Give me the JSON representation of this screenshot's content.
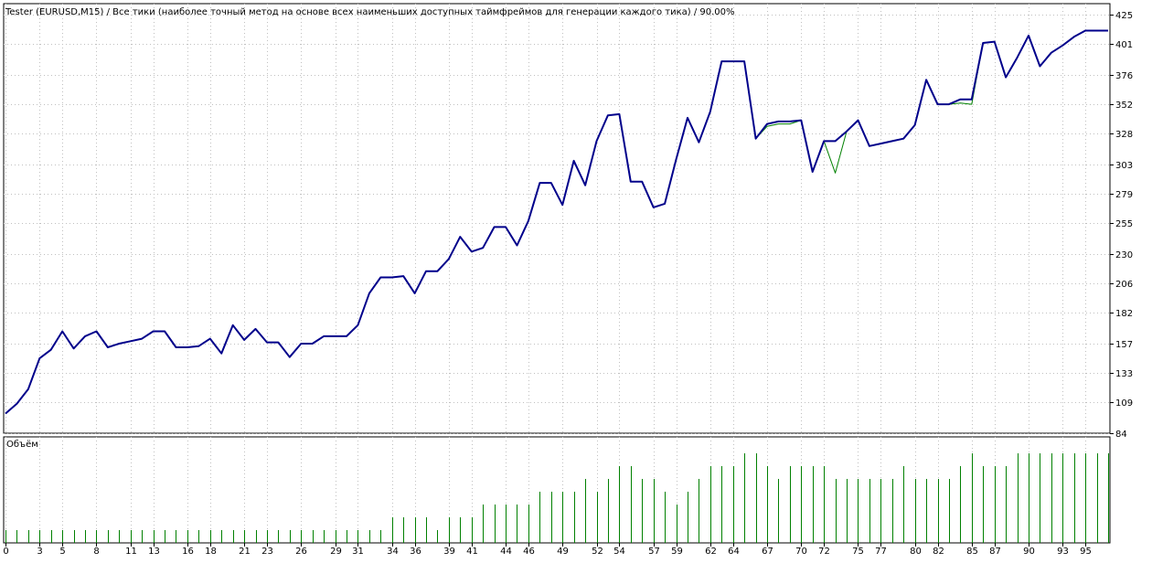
{
  "header": {
    "title": "Tester (EURUSD,M15) / Все тики (наиболее точный метод на основе всех наименьших доступных таймфреймов для генерации каждого тика) / 90.00%"
  },
  "volume_panel": {
    "label": "Объём"
  },
  "colors": {
    "balance": "#00008b",
    "equity": "#008000",
    "volume": "#008000",
    "grid": "#c0c0c0",
    "background": "#ffffff"
  },
  "chart_data": {
    "type": "line",
    "title": "Tester (EURUSD,M15) / Все тики (наиболее точный метод на основе всех наименьших доступных таймфреймов для генерации каждого тика) / 90.00%",
    "ylim": [
      84,
      434
    ],
    "xlim": [
      0,
      97
    ],
    "y_ticks": [
      84,
      109,
      133,
      157,
      182,
      206,
      230,
      255,
      279,
      303,
      328,
      352,
      376,
      401,
      425
    ],
    "x_ticks": [
      0,
      3,
      5,
      8,
      11,
      13,
      16,
      18,
      21,
      23,
      26,
      29,
      31,
      34,
      36,
      39,
      41,
      44,
      46,
      49,
      52,
      54,
      57,
      59,
      62,
      64,
      67,
      70,
      72,
      75,
      77,
      80,
      82,
      85,
      87,
      90,
      93,
      95
    ],
    "grid": true,
    "series": [
      {
        "role": "balance",
        "x": [
          0,
          1,
          2,
          3,
          4,
          5,
          6,
          7,
          8,
          9,
          10,
          11,
          12,
          13,
          14,
          15,
          16,
          17,
          18,
          19,
          20,
          21,
          22,
          23,
          24,
          25,
          26,
          27,
          28,
          29,
          30,
          31,
          32,
          33,
          34,
          35,
          36,
          37,
          38,
          39,
          40,
          41,
          42,
          43,
          44,
          45,
          46,
          47,
          48,
          49,
          50,
          51,
          52,
          53,
          54,
          55,
          56,
          57,
          58,
          59,
          60,
          61,
          62,
          63,
          64,
          65,
          66,
          67,
          68,
          69,
          70,
          71,
          72,
          73,
          74,
          75,
          76,
          77,
          78,
          79,
          80,
          81,
          82,
          83,
          84,
          85,
          86,
          87,
          88,
          89,
          90,
          91,
          92,
          93,
          94,
          95,
          96,
          97
        ],
        "y": [
          100,
          108,
          120,
          145,
          152,
          167,
          153,
          163,
          167,
          154,
          157,
          159,
          161,
          167,
          167,
          154,
          154,
          155,
          161,
          149,
          172,
          160,
          169,
          158,
          158,
          146,
          157,
          157,
          163,
          163,
          163,
          172,
          198,
          211,
          211,
          212,
          198,
          216,
          216,
          226,
          244,
          232,
          235,
          252,
          252,
          237,
          257,
          288,
          288,
          270,
          306,
          286,
          322,
          343,
          344,
          289,
          289,
          268,
          271,
          307,
          341,
          321,
          346,
          387,
          387,
          387,
          324,
          336,
          338,
          338,
          339,
          297,
          322,
          322,
          330,
          339,
          318,
          320,
          322,
          324,
          335,
          372,
          352,
          352,
          356,
          356,
          402,
          403,
          374,
          390,
          408,
          383,
          394,
          400,
          407,
          412,
          412,
          412
        ]
      },
      {
        "role": "equity",
        "x": [
          0,
          1,
          2,
          3,
          4,
          5,
          6,
          7,
          8,
          9,
          10,
          11,
          12,
          13,
          14,
          15,
          16,
          17,
          18,
          19,
          20,
          21,
          22,
          23,
          24,
          25,
          26,
          27,
          28,
          29,
          30,
          31,
          32,
          33,
          34,
          35,
          36,
          37,
          38,
          39,
          40,
          41,
          42,
          43,
          44,
          45,
          46,
          47,
          48,
          49,
          50,
          51,
          52,
          53,
          54,
          55,
          56,
          57,
          58,
          59,
          60,
          61,
          62,
          63,
          64,
          65,
          66,
          67,
          68,
          69,
          70,
          71,
          72,
          73,
          74,
          75,
          76,
          77,
          78,
          79,
          80,
          81,
          82,
          83,
          84,
          85,
          86,
          87,
          88,
          89,
          90,
          91,
          92,
          93,
          94,
          95,
          96,
          97
        ],
        "y": [
          100,
          108,
          120,
          145,
          152,
          167,
          153,
          163,
          167,
          154,
          157,
          159,
          161,
          167,
          167,
          154,
          154,
          155,
          161,
          149,
          172,
          160,
          169,
          158,
          158,
          146,
          157,
          157,
          163,
          163,
          163,
          172,
          198,
          211,
          211,
          212,
          198,
          216,
          216,
          226,
          244,
          232,
          235,
          252,
          252,
          237,
          257,
          288,
          288,
          270,
          306,
          286,
          322,
          343,
          344,
          289,
          289,
          268,
          271,
          307,
          341,
          321,
          346,
          387,
          387,
          387,
          324,
          334,
          336,
          336,
          339,
          297,
          322,
          296,
          330,
          339,
          318,
          320,
          322,
          324,
          335,
          372,
          352,
          352,
          353,
          352,
          402,
          403,
          374,
          390,
          408,
          383,
          394,
          400,
          407,
          412,
          412,
          412
        ]
      }
    ],
    "volume": {
      "label": "Объём",
      "x": [
        0,
        1,
        2,
        3,
        4,
        5,
        6,
        7,
        8,
        9,
        10,
        11,
        12,
        13,
        14,
        15,
        16,
        17,
        18,
        19,
        20,
        21,
        22,
        23,
        24,
        25,
        26,
        27,
        28,
        29,
        30,
        31,
        32,
        33,
        34,
        35,
        36,
        37,
        38,
        39,
        40,
        41,
        42,
        43,
        44,
        45,
        46,
        47,
        48,
        49,
        50,
        51,
        52,
        53,
        54,
        55,
        56,
        57,
        58,
        59,
        60,
        61,
        62,
        63,
        64,
        65,
        66,
        67,
        68,
        69,
        70,
        71,
        72,
        73,
        74,
        75,
        76,
        77,
        78,
        79,
        80,
        81,
        82,
        83,
        84,
        85,
        86,
        87,
        88,
        89,
        90,
        91,
        92,
        93,
        94,
        95,
        96,
        97
      ],
      "values": [
        1,
        1,
        1,
        1,
        1,
        1,
        1,
        1,
        1,
        1,
        1,
        1,
        1,
        1,
        1,
        1,
        1,
        1,
        1,
        1,
        1,
        1,
        1,
        1,
        1,
        1,
        1,
        1,
        1,
        1,
        1,
        1,
        1,
        1,
        2,
        2,
        2,
        2,
        1,
        2,
        2,
        2,
        3,
        3,
        3,
        3,
        3,
        4,
        4,
        4,
        4,
        5,
        4,
        5,
        6,
        6,
        5,
        5,
        4,
        3,
        4,
        5,
        6,
        6,
        6,
        7,
        7,
        6,
        5,
        6,
        6,
        6,
        6,
        5,
        5,
        5,
        5,
        5,
        5,
        6,
        5,
        5,
        5,
        5,
        6,
        7,
        6,
        6,
        6,
        7,
        7,
        7,
        7,
        7,
        7,
        7,
        7,
        7
      ],
      "ylim": [
        0,
        8
      ]
    }
  }
}
